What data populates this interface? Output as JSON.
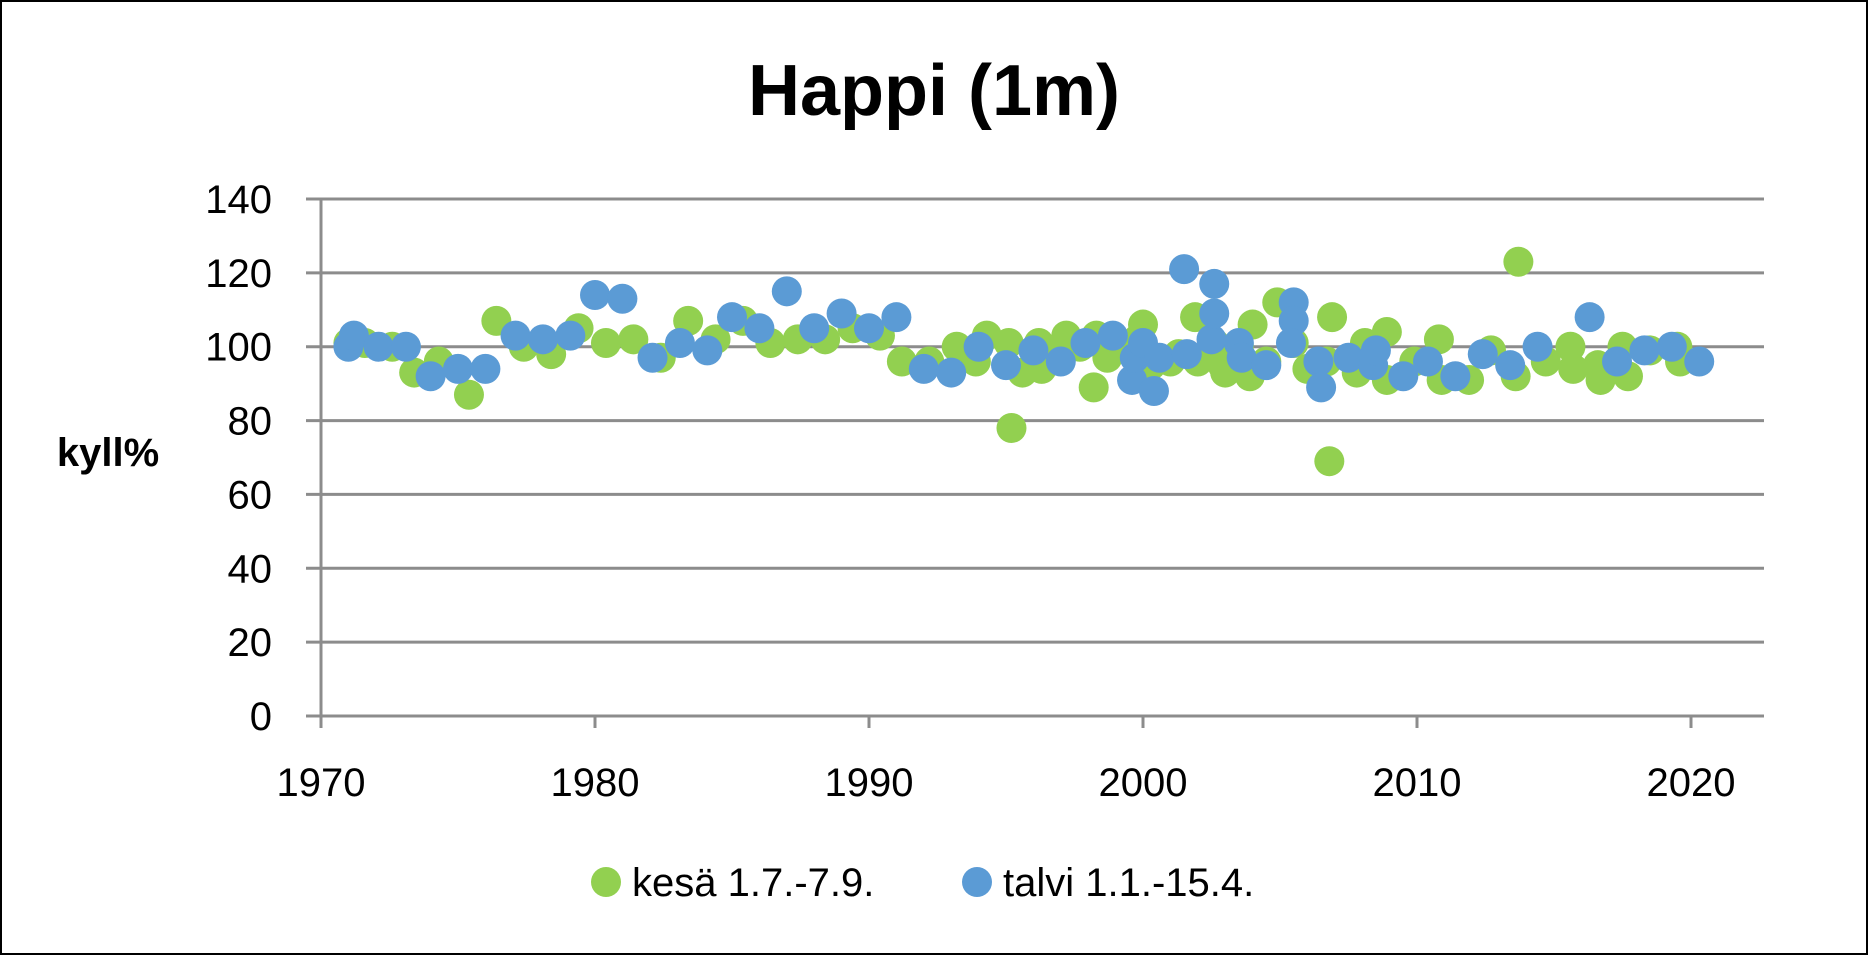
{
  "chart_data": {
    "type": "scatter",
    "title": "Happi (1m)",
    "xlabel": "",
    "ylabel": "kyll%",
    "xlim": [
      1970,
      2022
    ],
    "ylim": [
      0,
      140
    ],
    "x_ticks": [
      "1970",
      "1980",
      "1990",
      "2000",
      "2010",
      "2020"
    ],
    "y_ticks": [
      "0",
      "20",
      "40",
      "60",
      "80",
      "100",
      "120",
      "140"
    ],
    "grid": "horizontal",
    "legend": "bottom",
    "series": [
      {
        "name": "kesä 1.7.-7.9.",
        "color": "#92D050",
        "points": [
          [
            1971.0,
            101
          ],
          [
            1971.6,
            101
          ],
          [
            1972.6,
            100
          ],
          [
            1973.4,
            93
          ],
          [
            1974.3,
            96
          ],
          [
            1975.4,
            87
          ],
          [
            1976.4,
            107
          ],
          [
            1977.4,
            100
          ],
          [
            1978.4,
            98
          ],
          [
            1979.4,
            105
          ],
          [
            1980.4,
            101
          ],
          [
            1981.4,
            102
          ],
          [
            1982.4,
            97
          ],
          [
            1983.4,
            107
          ],
          [
            1984.4,
            102
          ],
          [
            1985.4,
            107
          ],
          [
            1986.4,
            101
          ],
          [
            1987.4,
            102
          ],
          [
            1988.4,
            102
          ],
          [
            1989.4,
            105
          ],
          [
            1990.4,
            103
          ],
          [
            1991.2,
            96
          ],
          [
            1992.2,
            96
          ],
          [
            1993.2,
            100
          ],
          [
            1993.9,
            96
          ],
          [
            1994.3,
            103
          ],
          [
            1995.1,
            101
          ],
          [
            1995.2,
            78
          ],
          [
            1995.6,
            93
          ],
          [
            1996.2,
            101
          ],
          [
            1996.3,
            94
          ],
          [
            1996.6,
            98
          ],
          [
            1997.2,
            103
          ],
          [
            1997.7,
            100
          ],
          [
            1998.2,
            89
          ],
          [
            1998.3,
            103
          ],
          [
            1998.7,
            97
          ],
          [
            1999.4,
            100
          ],
          [
            1999.8,
            102
          ],
          [
            2000.0,
            106
          ],
          [
            2000.3,
            95
          ],
          [
            2001.0,
            96
          ],
          [
            2001.3,
            98
          ],
          [
            2001.9,
            108
          ],
          [
            2002.0,
            96
          ],
          [
            2002.6,
            101
          ],
          [
            2002.9,
            95
          ],
          [
            2003.0,
            93
          ],
          [
            2003.5,
            100
          ],
          [
            2003.9,
            92
          ],
          [
            2004.0,
            106
          ],
          [
            2004.5,
            96
          ],
          [
            2004.9,
            112
          ],
          [
            2005.5,
            101
          ],
          [
            2006.0,
            94
          ],
          [
            2006.7,
            96
          ],
          [
            2006.8,
            69
          ],
          [
            2006.9,
            108
          ],
          [
            2007.8,
            93
          ],
          [
            2008.1,
            101
          ],
          [
            2008.9,
            104
          ],
          [
            2008.9,
            91
          ],
          [
            2009.9,
            96
          ],
          [
            2010.8,
            102
          ],
          [
            2010.9,
            91
          ],
          [
            2011.9,
            91
          ],
          [
            2012.7,
            99
          ],
          [
            2013.6,
            92
          ],
          [
            2013.7,
            123
          ],
          [
            2014.7,
            96
          ],
          [
            2015.6,
            100
          ],
          [
            2015.7,
            94
          ],
          [
            2016.6,
            95
          ],
          [
            2016.7,
            91
          ],
          [
            2017.5,
            100
          ],
          [
            2017.7,
            92
          ],
          [
            2018.5,
            99
          ],
          [
            2019.5,
            100
          ],
          [
            2019.6,
            96
          ]
        ]
      },
      {
        "name": "talvi 1.1.-15.4.",
        "color": "#5B9BD5",
        "points": [
          [
            1971.0,
            100
          ],
          [
            1971.2,
            103
          ],
          [
            1972.1,
            100
          ],
          [
            1973.1,
            100
          ],
          [
            1974.0,
            92
          ],
          [
            1975.0,
            94
          ],
          [
            1976.0,
            94
          ],
          [
            1977.1,
            103
          ],
          [
            1978.1,
            102
          ],
          [
            1979.1,
            103
          ],
          [
            1980.0,
            114
          ],
          [
            1981.0,
            113
          ],
          [
            1982.1,
            97
          ],
          [
            1983.1,
            101
          ],
          [
            1984.1,
            99
          ],
          [
            1985.0,
            108
          ],
          [
            1986.0,
            105
          ],
          [
            1987.0,
            115
          ],
          [
            1988.0,
            105
          ],
          [
            1989.0,
            109
          ],
          [
            1990.0,
            105
          ],
          [
            1991.0,
            108
          ],
          [
            1992.0,
            94
          ],
          [
            1993.0,
            93
          ],
          [
            1994.0,
            100
          ],
          [
            1995.0,
            95
          ],
          [
            1996.0,
            99
          ],
          [
            1997.0,
            96
          ],
          [
            1997.9,
            101
          ],
          [
            1998.9,
            103
          ],
          [
            1999.6,
            91
          ],
          [
            1999.7,
            97
          ],
          [
            2000.0,
            101
          ],
          [
            2000.4,
            88
          ],
          [
            2000.6,
            97
          ],
          [
            2001.5,
            121
          ],
          [
            2001.6,
            98
          ],
          [
            2002.5,
            102
          ],
          [
            2002.6,
            117
          ],
          [
            2002.6,
            109
          ],
          [
            2003.5,
            101
          ],
          [
            2003.6,
            97
          ],
          [
            2004.5,
            95
          ],
          [
            2005.5,
            112
          ],
          [
            2005.5,
            107
          ],
          [
            2005.4,
            101
          ],
          [
            2006.4,
            96
          ],
          [
            2006.5,
            89
          ],
          [
            2007.5,
            97
          ],
          [
            2008.4,
            95
          ],
          [
            2008.5,
            99
          ],
          [
            2009.5,
            92
          ],
          [
            2010.4,
            96
          ],
          [
            2011.4,
            92
          ],
          [
            2012.4,
            98
          ],
          [
            2013.4,
            95
          ],
          [
            2014.4,
            100
          ],
          [
            2016.3,
            108
          ],
          [
            2017.3,
            96
          ],
          [
            2018.3,
            99
          ],
          [
            2019.3,
            100
          ],
          [
            2020.3,
            96
          ]
        ]
      }
    ]
  }
}
